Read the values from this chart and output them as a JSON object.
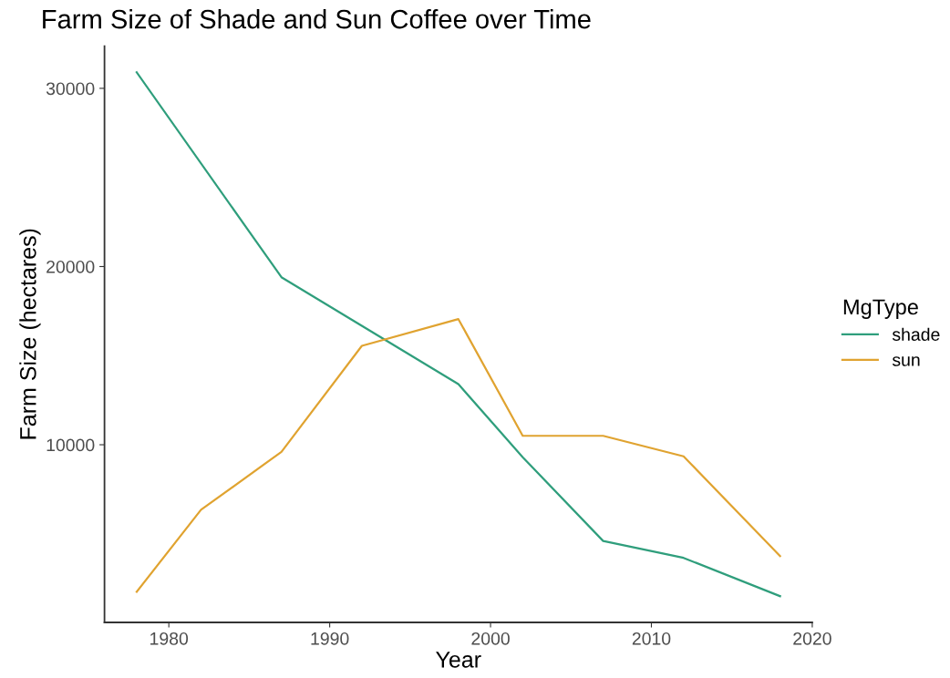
{
  "chart_data": {
    "type": "line",
    "title": "Farm Size of Shade and Sun Coffee over Time",
    "xlabel": "Year",
    "ylabel": "Farm Size (hectares)",
    "legend_title": "MgType",
    "x": [
      1978,
      1982,
      1987,
      1992,
      1998,
      2002,
      2007,
      2012,
      2018
    ],
    "series": [
      {
        "name": "shade",
        "color": "#2f9e7c",
        "x": [
          1978,
          1987,
          1998,
          2002,
          2007,
          2012,
          2018
        ],
        "values": [
          30900,
          19400,
          13400,
          9300,
          4600,
          3650,
          1500
        ]
      },
      {
        "name": "sun",
        "color": "#e0a330",
        "values": [
          1750,
          6350,
          9600,
          15550,
          17050,
          10500,
          10500,
          9350,
          3750
        ]
      }
    ],
    "xlim": [
      1976,
      2020
    ],
    "xticks": [
      1980,
      1990,
      2000,
      2010,
      2020
    ],
    "ylim": [
      30,
      32370
    ],
    "yticks": [
      10000,
      20000,
      30000
    ],
    "grid": false,
    "legend": "right",
    "marker": "none",
    "line_style": "solid"
  }
}
